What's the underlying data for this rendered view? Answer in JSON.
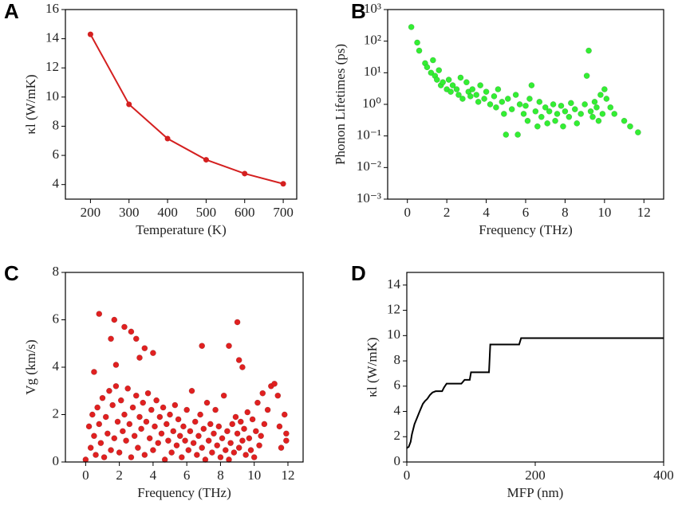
{
  "chart_data": [
    {
      "type": "line",
      "panel_label": "A",
      "xlabel": "Temperature (K)",
      "ylabel": "κl (W/mK)",
      "color": "#d42020",
      "markers": true,
      "x": [
        200,
        300,
        400,
        500,
        600,
        700
      ],
      "values": [
        14.3,
        9.5,
        7.15,
        5.7,
        4.75,
        4.05
      ],
      "xlim": [
        135,
        735
      ],
      "ylim": [
        3,
        16
      ],
      "xticks": [
        200,
        300,
        400,
        500,
        600,
        700
      ],
      "yticks": [
        4,
        6,
        8,
        10,
        12,
        14,
        16
      ]
    },
    {
      "type": "scatter",
      "panel_label": "B",
      "xlabel": "Frequency (THz)",
      "ylabel": "Phonon Lifetimes (ps)",
      "color": "#33ee33",
      "log_y": true,
      "x": [
        0.2,
        0.5,
        0.6,
        0.9,
        1.0,
        1.2,
        1.3,
        1.4,
        1.5,
        1.6,
        1.7,
        1.8,
        2.0,
        2.1,
        2.2,
        2.3,
        2.5,
        2.6,
        2.7,
        2.8,
        3.0,
        3.1,
        3.2,
        3.3,
        3.5,
        3.6,
        3.7,
        3.9,
        4.0,
        4.2,
        4.4,
        4.5,
        4.6,
        4.8,
        4.9,
        5.0,
        5.1,
        5.3,
        5.5,
        5.6,
        5.7,
        5.9,
        6.0,
        6.1,
        6.2,
        6.3,
        6.5,
        6.6,
        6.7,
        6.8,
        7.0,
        7.1,
        7.2,
        7.4,
        7.5,
        7.6,
        7.8,
        7.9,
        8.0,
        8.2,
        8.3,
        8.5,
        8.6,
        8.8,
        9.0,
        9.1,
        9.2,
        9.3,
        9.4,
        9.5,
        9.6,
        9.7,
        9.8,
        9.9,
        10.0,
        10.1,
        10.3,
        10.5,
        11.0,
        11.3,
        11.7
      ],
      "values": [
        280,
        90,
        50,
        20,
        15,
        10,
        25,
        8,
        6,
        12,
        4,
        5,
        3,
        6,
        2.5,
        4,
        3,
        2,
        7,
        1.5,
        5,
        2.5,
        1.8,
        3,
        2,
        1.2,
        4,
        1.5,
        2.5,
        1.0,
        1.8,
        0.8,
        3,
        1.2,
        0.5,
        0.11,
        1.5,
        0.7,
        2,
        0.11,
        1.0,
        0.5,
        0.9,
        0.3,
        1.5,
        4,
        0.6,
        0.2,
        1.2,
        0.4,
        0.8,
        0.25,
        0.6,
        1.0,
        0.3,
        0.5,
        0.9,
        0.2,
        0.6,
        0.4,
        1.1,
        0.7,
        0.25,
        0.5,
        1.0,
        8,
        50,
        0.6,
        0.4,
        1.2,
        0.8,
        0.3,
        2,
        0.5,
        3,
        1.5,
        0.8,
        0.5,
        0.3,
        0.2,
        0.13
      ],
      "xlim": [
        -1,
        13
      ],
      "ylim": [
        0.001,
        1000
      ],
      "xticks": [
        0,
        2,
        4,
        6,
        8,
        10,
        12
      ],
      "yticks": [
        {
          "value": 0.001,
          "label": "10⁻³"
        },
        {
          "value": 0.01,
          "label": "10⁻²"
        },
        {
          "value": 0.1,
          "label": "10⁻¹"
        },
        {
          "value": 1,
          "label": "10⁰"
        },
        {
          "value": 10,
          "label": "10¹"
        },
        {
          "value": 100,
          "label": "10²"
        },
        {
          "value": 1000,
          "label": "10³"
        }
      ]
    },
    {
      "type": "scatter",
      "panel_label": "C",
      "xlabel": "Frequency (THz)",
      "ylabel": "Vg (km/s)",
      "color": "#e02020",
      "x": [
        0.8,
        1.7,
        2.3,
        3.0,
        2.7,
        1.5,
        3.5,
        4.0,
        6.9,
        8.5,
        9.0,
        9.1,
        9.3,
        0.5,
        1.8,
        3.2,
        0.0,
        0.2,
        0.3,
        0.4,
        0.5,
        0.6,
        0.7,
        0.8,
        0.9,
        1.0,
        1.1,
        1.2,
        1.3,
        1.4,
        1.5,
        1.6,
        1.7,
        1.8,
        1.9,
        2.0,
        2.1,
        2.2,
        2.3,
        2.4,
        2.5,
        2.6,
        2.7,
        2.8,
        2.9,
        3.0,
        3.1,
        3.2,
        3.3,
        3.4,
        3.5,
        3.6,
        3.7,
        3.8,
        3.9,
        4.0,
        4.1,
        4.2,
        4.3,
        4.4,
        4.5,
        4.6,
        4.7,
        4.8,
        4.9,
        5.0,
        5.1,
        5.2,
        5.3,
        5.4,
        5.5,
        5.6,
        5.7,
        5.8,
        5.9,
        6.0,
        6.1,
        6.2,
        6.3,
        6.4,
        6.5,
        6.6,
        6.7,
        6.8,
        6.9,
        7.0,
        7.1,
        7.2,
        7.3,
        7.4,
        7.5,
        7.6,
        7.7,
        7.8,
        7.9,
        8.0,
        8.1,
        8.2,
        8.3,
        8.4,
        8.5,
        8.6,
        8.7,
        8.8,
        8.9,
        9.0,
        9.1,
        9.2,
        9.3,
        9.4,
        9.5,
        9.6,
        9.7,
        9.8,
        9.9,
        10.0,
        10.1,
        10.2,
        10.3,
        10.4,
        10.5,
        10.6,
        10.8,
        11.0,
        11.2,
        11.4,
        11.5,
        11.6,
        11.8,
        11.9,
        11.9
      ],
      "values": [
        6.25,
        6.0,
        5.7,
        5.2,
        5.5,
        5.2,
        4.8,
        4.6,
        4.9,
        4.9,
        5.9,
        4.3,
        4.0,
        3.8,
        4.1,
        4.4,
        0.1,
        1.5,
        0.6,
        2.0,
        1.1,
        0.3,
        2.3,
        1.6,
        0.8,
        2.7,
        0.2,
        1.9,
        1.2,
        3.0,
        0.5,
        2.4,
        1.0,
        3.2,
        1.7,
        0.4,
        2.6,
        1.3,
        2.0,
        0.9,
        3.1,
        1.6,
        0.2,
        2.3,
        1.1,
        2.8,
        0.6,
        1.9,
        1.4,
        2.5,
        0.3,
        1.7,
        2.9,
        1.0,
        2.2,
        0.5,
        1.5,
        2.6,
        0.8,
        1.9,
        1.2,
        2.3,
        0.1,
        1.6,
        0.9,
        2.0,
        0.4,
        1.3,
        2.4,
        0.7,
        1.8,
        1.1,
        0.2,
        1.5,
        0.9,
        2.2,
        0.5,
        1.3,
        3.0,
        0.8,
        1.7,
        0.3,
        1.1,
        2.0,
        0.6,
        1.4,
        0.1,
        2.5,
        0.9,
        1.6,
        0.4,
        1.2,
        2.2,
        0.7,
        1.5,
        0.2,
        1.0,
        2.8,
        0.5,
        1.3,
        0.1,
        0.8,
        1.6,
        0.4,
        1.9,
        1.2,
        0.6,
        1.7,
        0.9,
        1.4,
        0.3,
        2.1,
        1.0,
        0.5,
        1.8,
        0.2,
        1.3,
        2.5,
        0.7,
        1.1,
        2.9,
        1.6,
        2.2,
        3.2,
        3.3,
        2.8,
        1.5,
        0.6,
        2.0,
        0.9,
        1.2
      ],
      "xlim": [
        -1.2,
        12.9
      ],
      "ylim": [
        0,
        8
      ],
      "xticks": [
        0,
        2,
        4,
        6,
        8,
        10,
        12
      ],
      "yticks": [
        0,
        2,
        4,
        6,
        8
      ]
    },
    {
      "type": "line",
      "panel_label": "D",
      "xlabel": "MFP (nm)",
      "ylabel": "κl (W/mK)",
      "color": "#000000",
      "x": [
        0,
        3,
        6,
        8,
        12,
        16,
        20,
        25,
        28,
        32,
        36,
        40,
        45,
        55,
        58,
        62,
        85,
        90,
        98,
        100,
        128,
        130,
        175,
        178,
        400
      ],
      "values": [
        1.1,
        1.2,
        1.6,
        2.2,
        3.0,
        3.5,
        4.0,
        4.6,
        4.8,
        5.0,
        5.3,
        5.5,
        5.6,
        5.6,
        5.9,
        6.2,
        6.2,
        6.5,
        6.5,
        7.1,
        7.1,
        9.3,
        9.3,
        9.8,
        9.8
      ],
      "xlim": [
        0,
        400
      ],
      "ylim": [
        0,
        15
      ],
      "xticks": [
        0,
        200,
        400
      ],
      "yticks": [
        0,
        2,
        4,
        6,
        8,
        10,
        12,
        14
      ]
    }
  ]
}
